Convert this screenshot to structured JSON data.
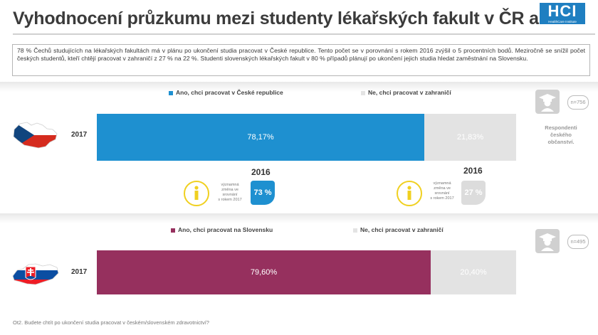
{
  "title": "Vyhodnocení průzkumu mezi studenty lékařských fakult v ČR a SR",
  "logo": {
    "text": "HCI",
    "subtitle": "HealthCare Institute"
  },
  "summary": "78 % Čechů studujících na lékařských fakultách má v plánu po ukončení studia pracovat v České republice. Tento počet se v porovnání s rokem 2016 zvýšil o 5 procentních bodů. Meziročně se snížil počet českých studentů, kteří chtějí pracovat v zahraničí z 27 % na 22 %. Studenti slovenských lékařských fakult v 80 % případů plánují po ukončení jejich studia hledat zaměstnání na Slovensku.",
  "colors": {
    "cz_primary": "#1e90d0",
    "sk_primary": "#96305e",
    "abroad": "#e3e3e3",
    "info_yellow": "#f0d020"
  },
  "cz": {
    "n": "n=756",
    "side_note": [
      "Respondenti",
      "českého",
      "občanství."
    ],
    "info_left": {
      "year": "2016",
      "caption": [
        "významná",
        "změna ve",
        "srovnání",
        "s rokem 2017"
      ],
      "value": "73 %"
    },
    "info_right": {
      "year": "2016",
      "caption": [
        "významná",
        "změna ve",
        "srovnání",
        "s rokem 2017"
      ],
      "value": "27 %"
    }
  },
  "sk": {
    "n": "n=495"
  },
  "footnote": "Ot2. Budete chtít po ukončení studia pracovat v českém/slovenském zdravotnictví?",
  "chart_data": [
    {
      "type": "bar",
      "orientation": "horizontal",
      "stacked": true,
      "categories": [
        "2017"
      ],
      "series": [
        {
          "name": "Ano, chci pracovat v České republice",
          "values": [
            78.17
          ],
          "label": "78,17%",
          "color": "#1e90d0"
        },
        {
          "name": "Ne, chci pracovat v zahraničí",
          "values": [
            21.83
          ],
          "label": "21,83%",
          "color": "#e3e3e3"
        }
      ],
      "xlim": [
        0,
        100
      ]
    },
    {
      "type": "bar",
      "orientation": "horizontal",
      "stacked": true,
      "categories": [
        "2017"
      ],
      "series": [
        {
          "name": "Ano, chci pracovat na Slovensku",
          "values": [
            79.6
          ],
          "label": "79,60%",
          "color": "#96305e"
        },
        {
          "name": "Ne, chci pracovat v zahraničí",
          "values": [
            20.4
          ],
          "label": "20,40%",
          "color": "#e3e3e3"
        }
      ],
      "xlim": [
        0,
        100
      ]
    }
  ]
}
